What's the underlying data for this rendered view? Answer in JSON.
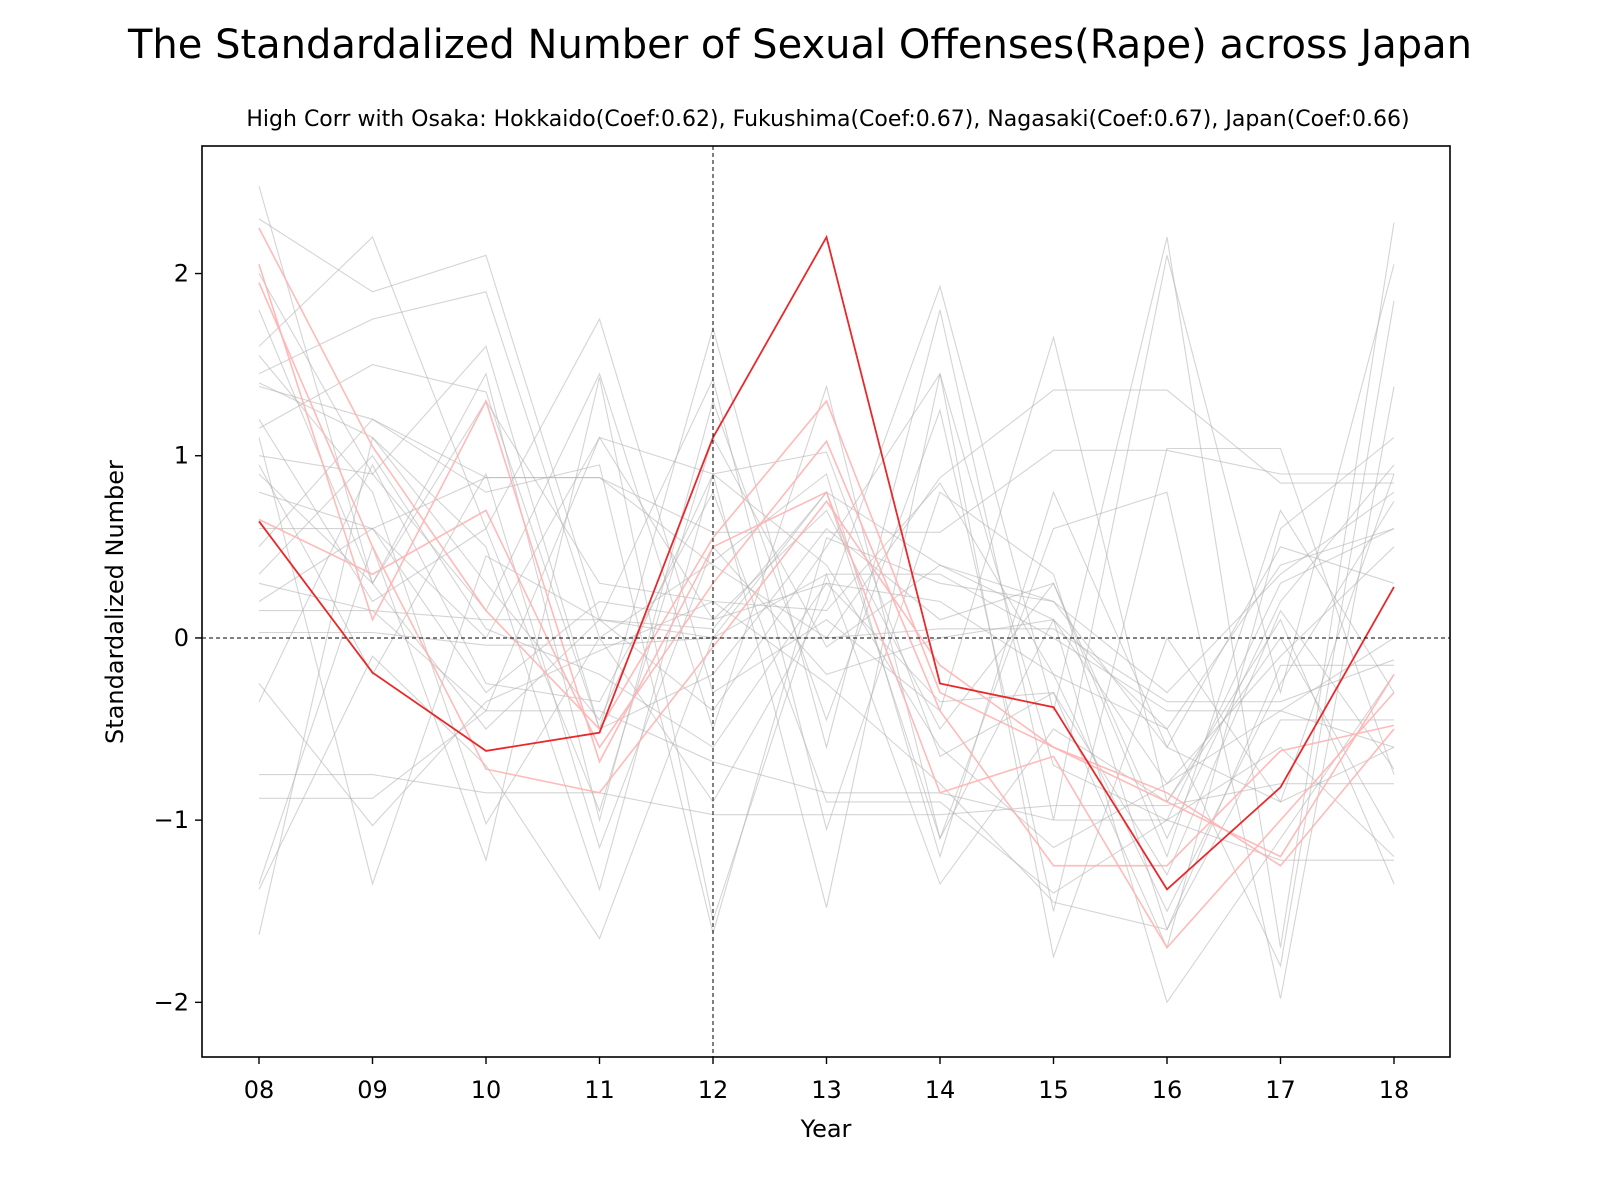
{
  "chart_data": {
    "type": "line",
    "title": "The Standardalized Number of Sexual Offenses(Rape) across Japan",
    "subtitle": "High Corr with Osaka: Hokkaido(Coef:0.62), Fukushima(Coef:0.67), Nagasaki(Coef:0.67), Japan(Coef:0.66)",
    "xlabel": "Year",
    "ylabel": "Standardalized Number",
    "categories": [
      "08",
      "09",
      "10",
      "11",
      "12",
      "13",
      "14",
      "15",
      "16",
      "17",
      "18"
    ],
    "ylim": [
      -2.3,
      2.7
    ],
    "yticks": [
      -2,
      -1,
      0,
      1,
      2
    ],
    "ytick_labels": [
      "−2",
      "−1",
      "0",
      "1",
      "2"
    ],
    "reference_lines": {
      "x_category": "12",
      "y": 0
    },
    "grid": false,
    "colors": {
      "highlight": "#e8282b",
      "correlated": "#ffb3b3",
      "other": "#b0b0b0",
      "reference": "#000000"
    },
    "highlight_series": {
      "values": [
        0.64,
        -0.19,
        -0.62,
        -0.52,
        1.1,
        2.2,
        -0.25,
        -0.38,
        -1.38,
        -0.82,
        0.28
      ]
    },
    "correlated_series": [
      {
        "values": [
          2.25,
          1.05,
          0.15,
          -0.5,
          0.55,
          1.3,
          -0.3,
          -0.6,
          -0.85,
          -1.25,
          -0.5
        ]
      },
      {
        "values": [
          2.05,
          0.1,
          1.3,
          -0.68,
          0.5,
          0.8,
          -0.85,
          -0.65,
          -1.7,
          -1.0,
          -0.3
        ]
      },
      {
        "values": [
          0.65,
          0.35,
          0.7,
          -0.6,
          0.3,
          1.08,
          -0.4,
          -1.25,
          -1.25,
          -0.62,
          -0.48
        ]
      },
      {
        "values": [
          1.95,
          0.5,
          -0.72,
          -0.85,
          -0.05,
          0.75,
          -0.15,
          -0.6,
          -0.9,
          -1.2,
          -0.2
        ]
      }
    ],
    "other_series": [
      {
        "values": [
          2.48,
          0.3,
          -0.5,
          0.1,
          0.05,
          0.8,
          0.4,
          0.2,
          -0.6,
          -0.9,
          0.9
        ]
      },
      {
        "values": [
          2.3,
          1.9,
          2.1,
          0.1,
          -0.4,
          0.5,
          1.45,
          -0.7,
          -1.0,
          0.3,
          0.6
        ]
      },
      {
        "values": [
          1.6,
          2.2,
          0.6,
          1.75,
          -0.3,
          0.1,
          -0.4,
          1.65,
          -0.9,
          0.0,
          -1.1
        ]
      },
      {
        "values": [
          1.45,
          1.75,
          1.9,
          0.0,
          -0.9,
          0.2,
          1.93,
          -0.4,
          2.2,
          -1.7,
          2.28
        ]
      },
      {
        "values": [
          1.38,
          1.2,
          0.88,
          0.88,
          0.4,
          0.0,
          0.88,
          1.36,
          1.36,
          0.85,
          0.85
        ]
      },
      {
        "values": [
          1.15,
          1.5,
          1.35,
          -0.5,
          1.7,
          -0.6,
          1.8,
          -1.0,
          2.1,
          -0.3,
          2.05
        ]
      },
      {
        "values": [
          1.0,
          0.9,
          0.15,
          1.45,
          -0.5,
          1.38,
          -1.1,
          0.6,
          0.8,
          -1.98,
          1.38
        ]
      },
      {
        "values": [
          0.9,
          0.3,
          1.45,
          -1.0,
          1.3,
          -0.45,
          1.25,
          -1.5,
          1.04,
          1.04,
          -0.75
        ]
      },
      {
        "values": [
          0.8,
          0.6,
          0.88,
          0.88,
          0.58,
          0.58,
          0.58,
          1.03,
          1.03,
          0.9,
          0.9
        ]
      },
      {
        "values": [
          0.6,
          0.6,
          -0.3,
          0.2,
          0.1,
          0.3,
          0.2,
          -0.2,
          -0.5,
          0.4,
          0.6
        ]
      },
      {
        "values": [
          0.3,
          0.15,
          -0.4,
          1.1,
          0.1,
          0.7,
          -0.5,
          0.3,
          -1.2,
          0.7,
          -0.3
        ]
      },
      {
        "values": [
          0.15,
          0.15,
          0.1,
          0.1,
          0.0,
          0.0,
          0.05,
          0.05,
          -0.35,
          -0.35,
          -0.12
        ]
      },
      {
        "values": [
          0.03,
          0.03,
          -0.04,
          -0.04,
          0.0,
          0.35,
          0.35,
          0.0,
          -0.4,
          -0.4,
          0.0
        ]
      },
      {
        "values": [
          -0.25,
          -1.03,
          -0.35,
          -0.07,
          0.2,
          -0.25,
          -0.8,
          -1.45,
          -1.6,
          -0.45,
          -0.45
        ]
      },
      {
        "values": [
          -0.35,
          0.95,
          -0.25,
          -0.35,
          0.8,
          -0.9,
          -0.9,
          -1.4,
          -1.0,
          -0.6,
          -1.2
        ]
      },
      {
        "values": [
          -0.75,
          -0.75,
          -0.85,
          -0.85,
          -0.97,
          -0.97,
          -0.97,
          -0.92,
          -0.92,
          -0.8,
          -0.8
        ]
      },
      {
        "values": [
          -0.88,
          -0.88,
          -0.4,
          -0.4,
          -0.68,
          -0.85,
          -0.85,
          -1.0,
          -1.0,
          -1.22,
          -1.22
        ]
      },
      {
        "values": [
          -1.35,
          0.5,
          -1.22,
          1.43,
          -1.55,
          0.35,
          -1.35,
          -0.5,
          -0.9,
          0.1,
          -1.35
        ]
      },
      {
        "values": [
          -1.63,
          1.1,
          0.5,
          -1.38,
          0.9,
          -1.48,
          1.45,
          -1.75,
          0.0,
          -0.9,
          -0.6
        ]
      },
      {
        "values": [
          -1.38,
          -0.1,
          -0.7,
          -1.65,
          0.0,
          0.8,
          -1.1,
          0.1,
          -2.0,
          -1.1,
          -0.2
        ]
      },
      {
        "values": [
          1.1,
          -1.35,
          0.45,
          0.1,
          1.42,
          -1.05,
          0.8,
          0.35,
          -1.6,
          -0.15,
          -0.15
        ]
      },
      {
        "values": [
          1.4,
          1.1,
          0.3,
          -0.45,
          0.9,
          1.02,
          -0.65,
          -0.3,
          -1.3,
          0.15,
          -0.72
        ]
      },
      {
        "values": [
          0.5,
          1.2,
          0.8,
          0.95,
          -1.62,
          0.55,
          0.3,
          0.2,
          -0.3,
          0.35,
          0.8
        ]
      },
      {
        "values": [
          2.0,
          0.9,
          1.6,
          -0.5,
          -0.2,
          0.6,
          0.1,
          0.3,
          -1.1,
          0.2,
          0.95
        ]
      },
      {
        "values": [
          1.55,
          0.8,
          -1.02,
          0.0,
          0.42,
          0.9,
          -1.2,
          0.8,
          -0.6,
          0.5,
          0.3
        ]
      },
      {
        "values": [
          1.2,
          0.2,
          0.6,
          -0.95,
          1.1,
          -0.05,
          0.4,
          0.1,
          -0.8,
          -0.4,
          -0.6
        ]
      },
      {
        "values": [
          0.35,
          1.0,
          0.05,
          -0.2,
          -0.6,
          0.3,
          -0.35,
          -0.3,
          -1.7,
          0.6,
          1.1
        ]
      },
      {
        "values": [
          0.95,
          -0.2,
          0.9,
          -1.15,
          0.5,
          -0.2,
          0.0,
          0.1,
          -0.5,
          -1.8,
          1.85
        ]
      },
      {
        "values": [
          1.8,
          0.3,
          1.3,
          0.3,
          0.2,
          0.15,
          0.85,
          -0.2,
          -1.5,
          -0.25,
          0.75
        ]
      },
      {
        "values": [
          0.2,
          0.6,
          0.0,
          1.1,
          0.9,
          0.4,
          -0.6,
          -1.15,
          -0.8,
          -0.1,
          0.5
        ]
      }
    ]
  }
}
